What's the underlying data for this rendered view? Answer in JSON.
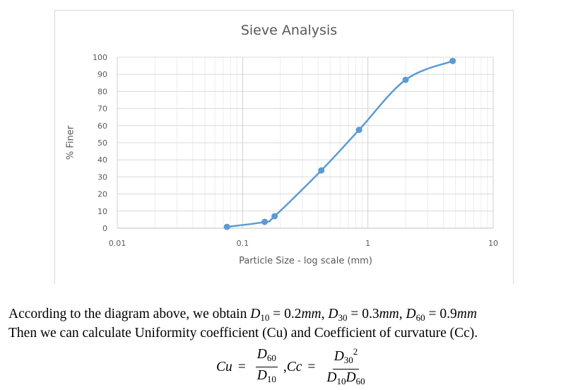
{
  "chart_data": {
    "type": "line",
    "title": "Sieve Analysis",
    "xlabel": "Particle Size - log scale (mm)",
    "ylabel": "% Finer",
    "xscale": "log",
    "xlim": [
      0.01,
      10
    ],
    "ylim": [
      0,
      100
    ],
    "x_ticks": [
      "0.01",
      "0.1",
      "1",
      "10"
    ],
    "y_ticks": [
      "0",
      "10",
      "20",
      "30",
      "40",
      "50",
      "60",
      "70",
      "80",
      "90",
      "100"
    ],
    "grid": true,
    "legend": null,
    "series": [
      {
        "name": "% Finer",
        "color": "#5b9bd5",
        "smooth": true,
        "markers": true,
        "x": [
          0.075,
          0.15,
          0.18,
          0.425,
          0.85,
          2.0,
          4.75
        ],
        "y": [
          0.8,
          3.7,
          7.0,
          33.8,
          57.5,
          86.8,
          97.8
        ]
      }
    ]
  },
  "text": {
    "line1_prefix": "According to the diagram above, we obtain ",
    "d10_label": "D",
    "d10_sub": "10",
    "d10_value": " = 0.2",
    "d10_unit": "mm",
    "d30_label": "D",
    "d30_sub": "30",
    "d30_value": " = 0.3",
    "d30_unit": "mm",
    "d60_label": "D",
    "d60_sub": "60",
    "d60_value": " = 0.9",
    "d60_unit": "mm",
    "line2": "Then we can calculate Uniformity coefficient (Cu) and Coefficient of curvature (Cc)."
  },
  "formula": {
    "cu_label": "Cu",
    "equals": "=",
    "cu_numer_sym": "D",
    "cu_numer_sub": "60",
    "cu_denom_sym": "D",
    "cu_denom_sub": "10",
    "separator": ",",
    "cc_label": "Cc",
    "cc_numer_sym": "D",
    "cc_numer_sub": "30",
    "cc_numer_sup": "2",
    "cc_denom_sym1": "D",
    "cc_denom_sub1": "10",
    "cc_denom_sym2": "D",
    "cc_denom_sub2": "60"
  }
}
